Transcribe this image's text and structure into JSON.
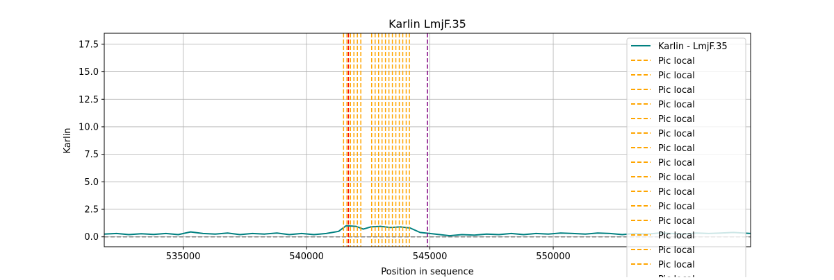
{
  "chart_data": {
    "type": "line",
    "title": "Karlin LmjF.35",
    "xlabel": "Position in sequence",
    "ylabel": "Karlin",
    "xlim": [
      531800,
      558000
    ],
    "ylim": [
      -0.9,
      18.5
    ],
    "xticks": [
      535000,
      540000,
      545000,
      550000
    ],
    "xtick_labels": [
      "535000",
      "540000",
      "545000",
      "550000"
    ],
    "yticks": [
      0.0,
      2.5,
      5.0,
      7.5,
      10.0,
      12.5,
      15.0,
      17.5
    ],
    "ytick_labels": [
      "0.0",
      "2.5",
      "5.0",
      "7.5",
      "10.0",
      "12.5",
      "15.0",
      "17.5"
    ],
    "grid": true,
    "legend_position": "top-right",
    "series": [
      {
        "name": "Karlin - LmjF.35",
        "color": "#008080",
        "x": [
          531800,
          532300,
          532800,
          533300,
          533800,
          534300,
          534800,
          535300,
          535800,
          536300,
          536800,
          537300,
          537800,
          538300,
          538800,
          539300,
          539800,
          540300,
          540800,
          541300,
          541600,
          542000,
          542300,
          542600,
          543000,
          543400,
          543800,
          544200,
          544600,
          545000,
          545400,
          545800,
          546300,
          546800,
          547300,
          547800,
          548300,
          548800,
          549300,
          549800,
          550300,
          550800,
          551300,
          551800,
          552300,
          552800,
          553300,
          553800,
          554300,
          554800,
          555300,
          555800,
          556300,
          556800,
          557300,
          558000
        ],
        "y": [
          0.25,
          0.3,
          0.2,
          0.28,
          0.22,
          0.3,
          0.2,
          0.45,
          0.3,
          0.25,
          0.35,
          0.2,
          0.3,
          0.25,
          0.35,
          0.2,
          0.3,
          0.2,
          0.3,
          0.5,
          1.0,
          0.95,
          0.7,
          0.9,
          0.95,
          0.85,
          0.9,
          0.8,
          0.4,
          0.3,
          0.2,
          0.1,
          0.2,
          0.15,
          0.25,
          0.2,
          0.3,
          0.2,
          0.3,
          0.25,
          0.35,
          0.3,
          0.25,
          0.35,
          0.3,
          0.2,
          0.3,
          0.25,
          0.35,
          0.3,
          0.25,
          0.35,
          0.3,
          0.35,
          0.4,
          0.3
        ]
      }
    ],
    "hline": {
      "y": 0,
      "color": "#808080",
      "style": "dashed"
    },
    "vlines": [
      {
        "x": 541500,
        "color": "#FFA500",
        "style": "dashed"
      },
      {
        "x": 541640,
        "color": "#FFA500",
        "style": "dashed"
      },
      {
        "x": 541780,
        "color": "#FFA500",
        "style": "dashed"
      },
      {
        "x": 541920,
        "color": "#FFA500",
        "style": "dashed"
      },
      {
        "x": 542060,
        "color": "#FFA500",
        "style": "dashed"
      },
      {
        "x": 542200,
        "color": "#FFA500",
        "style": "dashed"
      },
      {
        "x": 542640,
        "color": "#FFA500",
        "style": "dashed"
      },
      {
        "x": 542780,
        "color": "#FFA500",
        "style": "dashed"
      },
      {
        "x": 542920,
        "color": "#FFA500",
        "style": "dashed"
      },
      {
        "x": 543060,
        "color": "#FFA500",
        "style": "dashed"
      },
      {
        "x": 543200,
        "color": "#FFA500",
        "style": "dashed"
      },
      {
        "x": 543340,
        "color": "#FFA500",
        "style": "dashed"
      },
      {
        "x": 543480,
        "color": "#FFA500",
        "style": "dashed"
      },
      {
        "x": 543620,
        "color": "#FFA500",
        "style": "dashed"
      },
      {
        "x": 543760,
        "color": "#FFA500",
        "style": "dashed"
      },
      {
        "x": 543900,
        "color": "#FFA500",
        "style": "dashed"
      },
      {
        "x": 544040,
        "color": "#FFA500",
        "style": "dashed"
      },
      {
        "x": 544170,
        "color": "#FFA500",
        "style": "dashed"
      },
      {
        "x": 541700,
        "color": "#FF0000",
        "style": "dashed"
      },
      {
        "x": 544900,
        "color": "#800080",
        "style": "dashed"
      }
    ],
    "legend": [
      {
        "label": "Karlin - LmjF.35",
        "color": "#008080",
        "style": "solid"
      },
      {
        "label": "Pic local",
        "color": "#FFA500",
        "style": "dashed"
      },
      {
        "label": "Pic local",
        "color": "#FFA500",
        "style": "dashed"
      },
      {
        "label": "Pic local",
        "color": "#FFA500",
        "style": "dashed"
      },
      {
        "label": "Pic local",
        "color": "#FFA500",
        "style": "dashed"
      },
      {
        "label": "Pic local",
        "color": "#FFA500",
        "style": "dashed"
      },
      {
        "label": "Pic local",
        "color": "#FFA500",
        "style": "dashed"
      },
      {
        "label": "Pic local",
        "color": "#FFA500",
        "style": "dashed"
      },
      {
        "label": "Pic local",
        "color": "#FFA500",
        "style": "dashed"
      },
      {
        "label": "Pic local",
        "color": "#FFA500",
        "style": "dashed"
      },
      {
        "label": "Pic local",
        "color": "#FFA500",
        "style": "dashed"
      },
      {
        "label": "Pic local",
        "color": "#FFA500",
        "style": "dashed"
      },
      {
        "label": "Pic local",
        "color": "#FFA500",
        "style": "dashed"
      },
      {
        "label": "Pic local",
        "color": "#FFA500",
        "style": "dashed"
      },
      {
        "label": "Pic local",
        "color": "#FFA500",
        "style": "dashed"
      },
      {
        "label": "Pic local",
        "color": "#FFA500",
        "style": "dashed"
      },
      {
        "label": "Pic local",
        "color": "#FFA500",
        "style": "dashed"
      }
    ]
  }
}
